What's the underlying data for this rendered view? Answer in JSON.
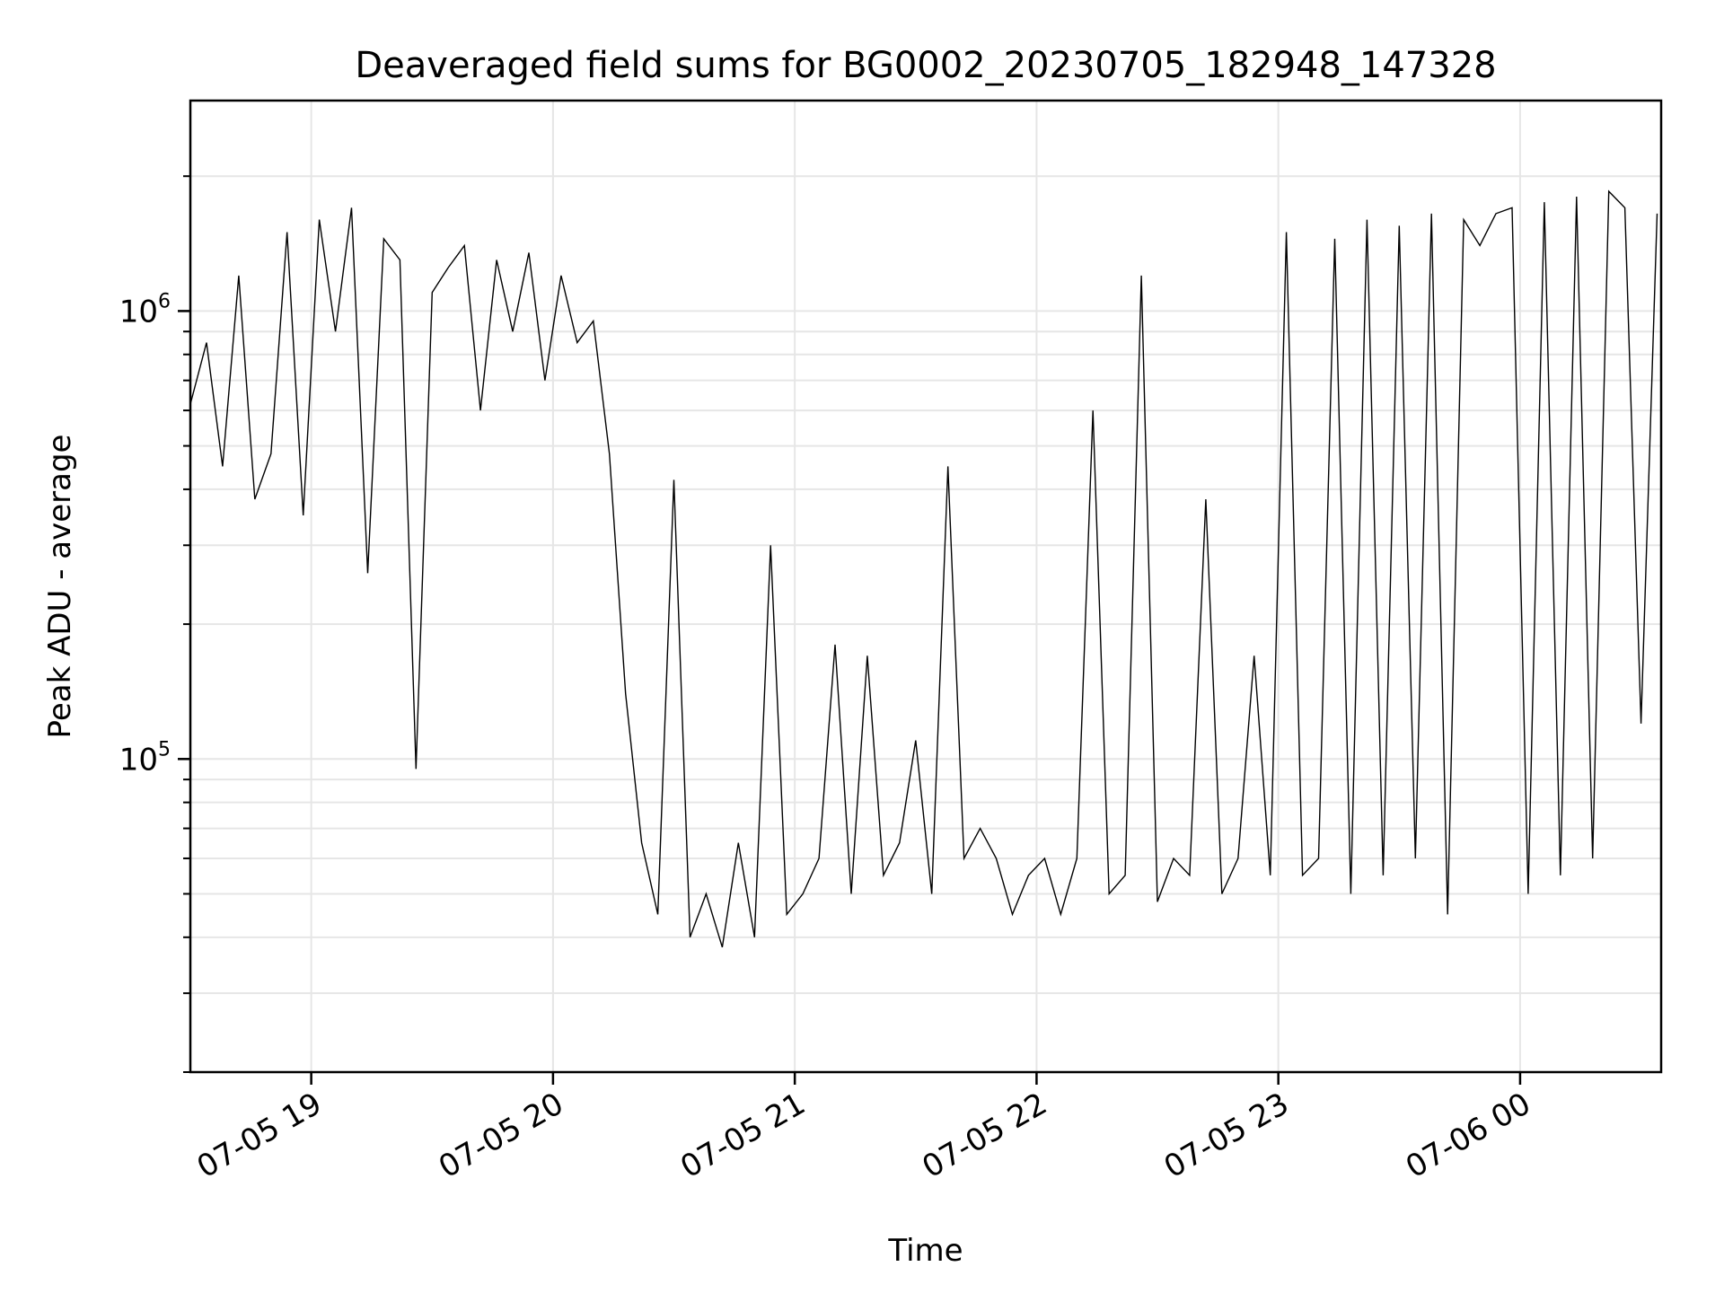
{
  "chart_data": {
    "type": "line",
    "title": "Deaveraged field sums for BG0002_20230705_182948_147328",
    "xlabel": "Time",
    "ylabel": "Peak ADU - average",
    "y_scale": "log",
    "ylim": [
      20000,
      2950000
    ],
    "xlim": [
      "2023-07-05 18:30",
      "2023-07-06 00:35"
    ],
    "x_ticks": [
      {
        "t": "2023-07-05 19:00",
        "label": "07-05 19"
      },
      {
        "t": "2023-07-05 20:00",
        "label": "07-05 20"
      },
      {
        "t": "2023-07-05 21:00",
        "label": "07-05 21"
      },
      {
        "t": "2023-07-05 22:00",
        "label": "07-05 22"
      },
      {
        "t": "2023-07-05 23:00",
        "label": "07-05 23"
      },
      {
        "t": "2023-07-06 00:00",
        "label": "07-06 00"
      }
    ],
    "y_ticks": [
      {
        "value": 100000,
        "base": "10",
        "exp": "5"
      },
      {
        "value": 1000000,
        "base": "10",
        "exp": "6"
      }
    ],
    "grid": true,
    "line_color": "#000000",
    "grid_color": "#e6e6e6",
    "series": [
      {
        "x": [
          "2023-07-05 18:30",
          "2023-07-05 18:34",
          "2023-07-05 18:38",
          "2023-07-05 18:42",
          "2023-07-05 18:46",
          "2023-07-05 18:50",
          "2023-07-05 18:54",
          "2023-07-05 18:58",
          "2023-07-05 19:02",
          "2023-07-05 19:06",
          "2023-07-05 19:10",
          "2023-07-05 19:14",
          "2023-07-05 19:18",
          "2023-07-05 19:22",
          "2023-07-05 19:26",
          "2023-07-05 19:30",
          "2023-07-05 19:34",
          "2023-07-05 19:38",
          "2023-07-05 19:42",
          "2023-07-05 19:46",
          "2023-07-05 19:50",
          "2023-07-05 19:54",
          "2023-07-05 19:58",
          "2023-07-05 20:02",
          "2023-07-05 20:06",
          "2023-07-05 20:10",
          "2023-07-05 20:14",
          "2023-07-05 20:18",
          "2023-07-05 20:22",
          "2023-07-05 20:26",
          "2023-07-05 20:30",
          "2023-07-05 20:34",
          "2023-07-05 20:38",
          "2023-07-05 20:42",
          "2023-07-05 20:46",
          "2023-07-05 20:50",
          "2023-07-05 20:54",
          "2023-07-05 20:58",
          "2023-07-05 21:02",
          "2023-07-05 21:06",
          "2023-07-05 21:10",
          "2023-07-05 21:14",
          "2023-07-05 21:18",
          "2023-07-05 21:22",
          "2023-07-05 21:26",
          "2023-07-05 21:30",
          "2023-07-05 21:34",
          "2023-07-05 21:38",
          "2023-07-05 21:42",
          "2023-07-05 21:46",
          "2023-07-05 21:50",
          "2023-07-05 21:54",
          "2023-07-05 21:58",
          "2023-07-05 22:02",
          "2023-07-05 22:06",
          "2023-07-05 22:10",
          "2023-07-05 22:14",
          "2023-07-05 22:18",
          "2023-07-05 22:22",
          "2023-07-05 22:26",
          "2023-07-05 22:30",
          "2023-07-05 22:34",
          "2023-07-05 22:38",
          "2023-07-05 22:42",
          "2023-07-05 22:46",
          "2023-07-05 22:50",
          "2023-07-05 22:54",
          "2023-07-05 22:58",
          "2023-07-05 23:02",
          "2023-07-05 23:06",
          "2023-07-05 23:10",
          "2023-07-05 23:14",
          "2023-07-05 23:18",
          "2023-07-05 23:22",
          "2023-07-05 23:26",
          "2023-07-05 23:30",
          "2023-07-05 23:34",
          "2023-07-05 23:38",
          "2023-07-05 23:42",
          "2023-07-05 23:46",
          "2023-07-05 23:50",
          "2023-07-05 23:54",
          "2023-07-05 23:58",
          "2023-07-06 00:02",
          "2023-07-06 00:06",
          "2023-07-06 00:10",
          "2023-07-06 00:14",
          "2023-07-06 00:18",
          "2023-07-06 00:22",
          "2023-07-06 00:26",
          "2023-07-06 00:30",
          "2023-07-06 00:34"
        ],
        "y": [
          620000,
          850000,
          450000,
          1200000,
          380000,
          480000,
          1500000,
          350000,
          1600000,
          900000,
          1700000,
          260000,
          1450000,
          1300000,
          95000,
          1100000,
          1250000,
          1400000,
          600000,
          1300000,
          900000,
          1350000,
          700000,
          1200000,
          850000,
          950000,
          480000,
          140000,
          65000,
          45000,
          420000,
          40000,
          50000,
          38000,
          65000,
          40000,
          300000,
          45000,
          50000,
          60000,
          180000,
          50000,
          170000,
          55000,
          65000,
          110000,
          50000,
          450000,
          60000,
          70000,
          60000,
          45000,
          55000,
          60000,
          45000,
          60000,
          600000,
          50000,
          55000,
          1200000,
          48000,
          60000,
          55000,
          380000,
          50000,
          60000,
          170000,
          55000,
          1500000,
          55000,
          60000,
          1450000,
          50000,
          1600000,
          55000,
          1550000,
          60000,
          1650000,
          45000,
          1600000,
          1400000,
          1650000,
          1700000,
          50000,
          1750000,
          55000,
          1800000,
          60000,
          1850000,
          1700000,
          120000,
          1650000
        ]
      }
    ]
  }
}
